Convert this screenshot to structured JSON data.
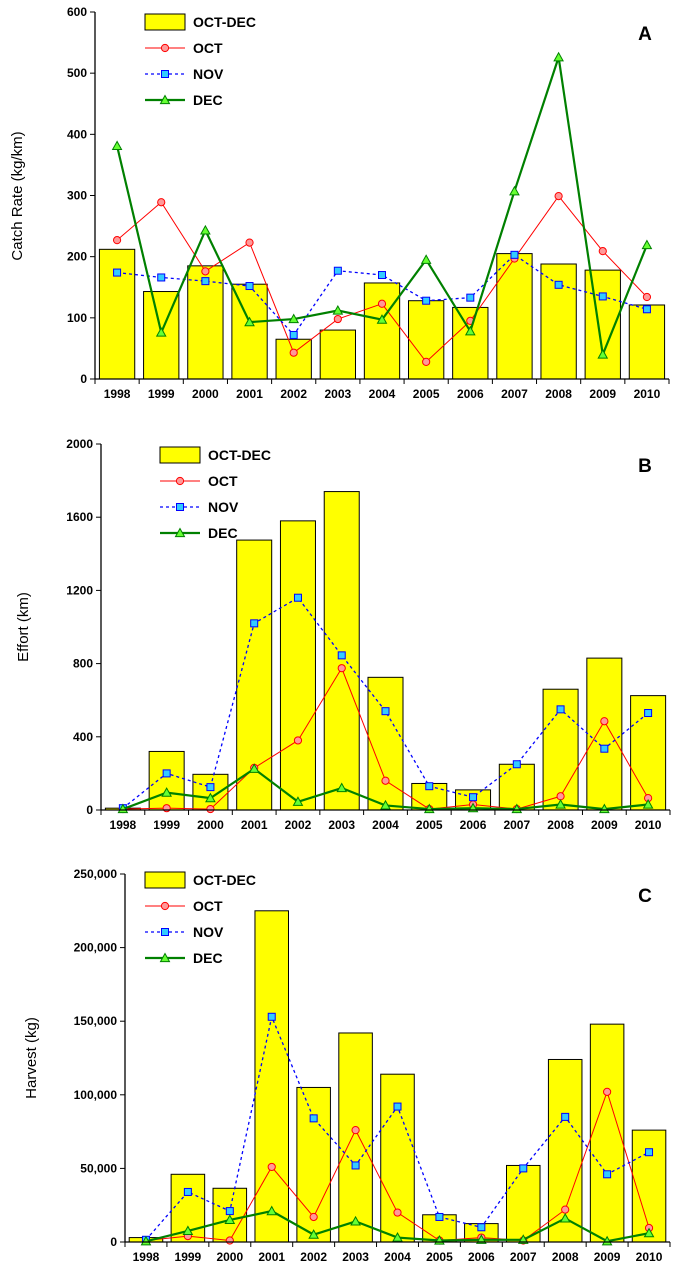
{
  "colors": {
    "bar_fill": "#FFFF00",
    "bar_stroke": "#000000",
    "oct_line": "#FF0000",
    "oct_marker_fill": "#FF9999",
    "nov_line": "#0000FF",
    "nov_marker_fill": "#33CCFF",
    "dec_line": "#008000",
    "dec_marker_fill": "#66FF33"
  },
  "chart_data": [
    {
      "type": "bar",
      "panel_letter": "A",
      "title": "",
      "xlabel": "",
      "ylabel": "Catch Rate (kg/km)",
      "ylim": [
        0,
        600
      ],
      "y_ticks": [
        "0",
        "100",
        "200",
        "300",
        "400",
        "500",
        "600"
      ],
      "categories": [
        "1998",
        "1999",
        "2000",
        "2001",
        "2002",
        "2003",
        "2004",
        "2005",
        "2006",
        "2007",
        "2008",
        "2009",
        "2010"
      ],
      "legend_position": "top-left",
      "series": [
        {
          "name": "OCT-DEC",
          "kind": "bar",
          "values": [
            212,
            143,
            185,
            155,
            65,
            80,
            157,
            128,
            117,
            205,
            188,
            178,
            121
          ]
        },
        {
          "name": "OCT",
          "kind": "line",
          "values": [
            227,
            289,
            176,
            223,
            43,
            98,
            123,
            28,
            95,
            197,
            299,
            209,
            134
          ]
        },
        {
          "name": "NOV",
          "kind": "line",
          "values": [
            174,
            166,
            160,
            152,
            72,
            177,
            170,
            128,
            133,
            203,
            154,
            135,
            114
          ]
        },
        {
          "name": "DEC",
          "kind": "line",
          "values": [
            381,
            76,
            243,
            93,
            98,
            112,
            97,
            195,
            78,
            307,
            526,
            40,
            219
          ]
        }
      ]
    },
    {
      "type": "bar",
      "panel_letter": "B",
      "title": "",
      "xlabel": "",
      "ylabel": "Effort (km)",
      "ylim": [
        0,
        2000
      ],
      "y_ticks": [
        "0",
        "400",
        "800",
        "1200",
        "1600",
        "2000"
      ],
      "categories": [
        "1998",
        "1999",
        "2000",
        "2001",
        "2002",
        "2003",
        "2004",
        "2005",
        "2006",
        "2007",
        "2008",
        "2009",
        "2010"
      ],
      "legend_position": "top-left",
      "series": [
        {
          "name": "OCT-DEC",
          "kind": "bar",
          "values": [
            10,
            320,
            195,
            1475,
            1580,
            1740,
            725,
            145,
            110,
            250,
            660,
            830,
            625
          ]
        },
        {
          "name": "OCT",
          "kind": "line",
          "values": [
            5,
            10,
            5,
            230,
            380,
            775,
            160,
            5,
            30,
            5,
            75,
            485,
            65
          ]
        },
        {
          "name": "NOV",
          "kind": "line",
          "values": [
            10,
            200,
            125,
            1020,
            1160,
            845,
            540,
            130,
            70,
            250,
            550,
            335,
            530
          ]
        },
        {
          "name": "DEC",
          "kind": "line",
          "values": [
            5,
            95,
            65,
            225,
            45,
            120,
            25,
            5,
            10,
            5,
            30,
            5,
            30
          ]
        }
      ]
    },
    {
      "type": "bar",
      "panel_letter": "C",
      "title": "",
      "xlabel": "",
      "ylabel": "Harvest (kg)",
      "ylim": [
        0,
        250000
      ],
      "y_ticks": [
        "0",
        "50,000",
        "100,000",
        "150,000",
        "200,000",
        "250,000"
      ],
      "categories": [
        "1998",
        "1999",
        "2000",
        "2001",
        "2002",
        "2003",
        "2004",
        "2005",
        "2006",
        "2007",
        "2008",
        "2009",
        "2010"
      ],
      "legend_position": "top-left",
      "series": [
        {
          "name": "OCT-DEC",
          "kind": "bar",
          "values": [
            3000,
            46000,
            36500,
            225000,
            105000,
            142000,
            114000,
            18500,
            12500,
            52000,
            124000,
            148000,
            76000
          ]
        },
        {
          "name": "OCT",
          "kind": "line",
          "values": [
            1000,
            4000,
            1000,
            51000,
            17000,
            76000,
            20000,
            1000,
            3000,
            1000,
            22000,
            102000,
            9500
          ]
        },
        {
          "name": "NOV",
          "kind": "line",
          "values": [
            1500,
            34000,
            21000,
            153000,
            84000,
            52000,
            92000,
            17000,
            10000,
            50000,
            85000,
            46000,
            61000
          ]
        },
        {
          "name": "DEC",
          "kind": "line",
          "values": [
            500,
            7500,
            15000,
            21000,
            5000,
            14000,
            3000,
            1000,
            1500,
            1500,
            16000,
            500,
            6000
          ]
        }
      ]
    }
  ]
}
